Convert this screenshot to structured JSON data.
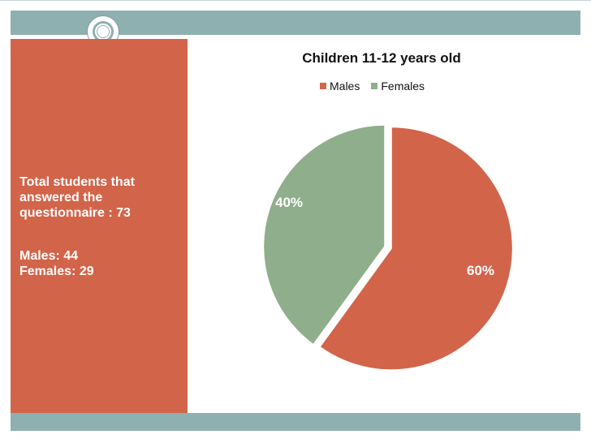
{
  "panel": {
    "total_line": "Total students that answered the questionnaire : 73",
    "males_line": "Males: 44",
    "females_line": "Females: 29"
  },
  "colors": {
    "accent": "#d2644a",
    "band": "#8fb0b1",
    "males": "#d2644a",
    "females": "#8fae8b"
  },
  "chart_data": {
    "type": "pie",
    "title": "Children 11-12 years old",
    "categories": [
      "Males",
      "Females"
    ],
    "values": [
      60,
      40
    ],
    "labels": [
      "60%",
      "40%"
    ],
    "legend_position": "top"
  }
}
